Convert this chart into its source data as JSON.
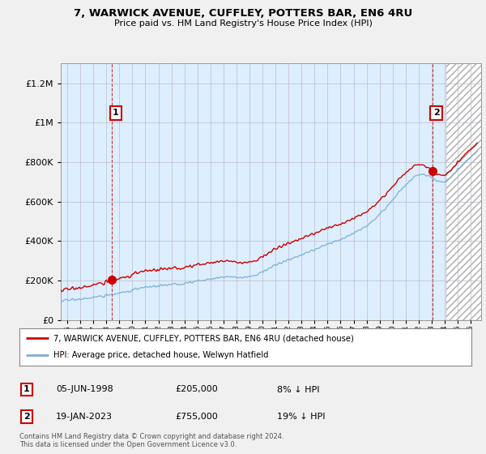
{
  "title": "7, WARWICK AVENUE, CUFFLEY, POTTERS BAR, EN6 4RU",
  "subtitle": "Price paid vs. HM Land Registry's House Price Index (HPI)",
  "ylim": [
    0,
    1300000
  ],
  "xlim_start": 1994.5,
  "xlim_end": 2026.8,
  "sale1_date": 1998.43,
  "sale1_price": 205000,
  "sale1_label": "1",
  "sale2_date": 2023.05,
  "sale2_price": 755000,
  "sale2_label": "2",
  "legend_line1": "7, WARWICK AVENUE, CUFFLEY, POTTERS BAR, EN6 4RU (detached house)",
  "legend_line2": "HPI: Average price, detached house, Welwyn Hatfield",
  "footer": "Contains HM Land Registry data © Crown copyright and database right 2024.\nThis data is licensed under the Open Government Licence v3.0.",
  "red_color": "#cc0000",
  "blue_color": "#7ab0d4",
  "hatch_start": 2024.1,
  "plot_bg_color": "#ddeeff",
  "fig_bg_color": "#f0f0f0"
}
